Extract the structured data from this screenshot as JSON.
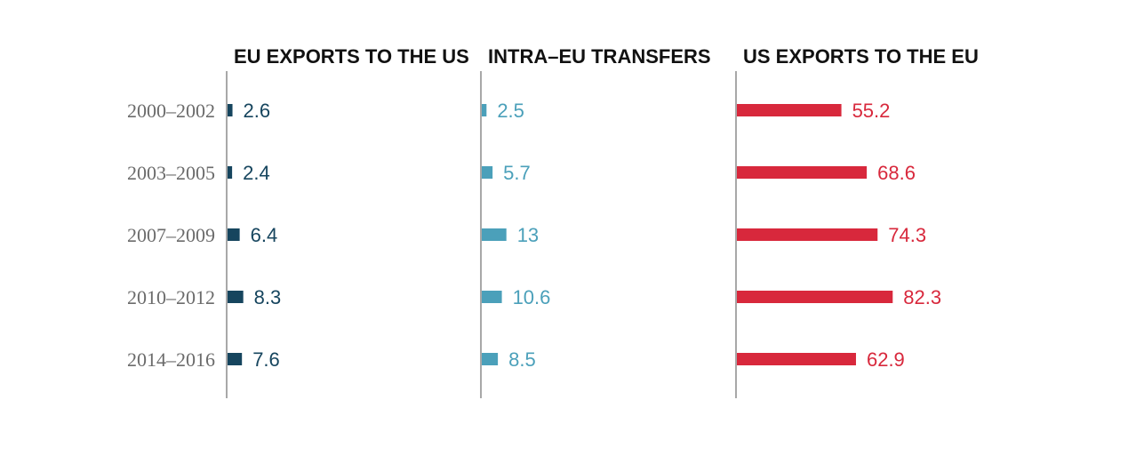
{
  "chart_data": {
    "type": "bar",
    "orientation": "horizontal",
    "grid": false,
    "categories": [
      "2000–2002",
      "2003–2005",
      "2007–2009",
      "2010–2012",
      "2014–2016"
    ],
    "panels": [
      {
        "title": "EU EXPORTS TO THE US",
        "color": "#16455e",
        "values": [
          2.6,
          2.4,
          6.4,
          8.3,
          7.6
        ],
        "labels": [
          "2.6",
          "2.4",
          "6.4",
          "8.3",
          "7.6"
        ]
      },
      {
        "title": "INTRA–EU TRANSFERS",
        "color": "#4ba0ba",
        "values": [
          2.5,
          5.7,
          13,
          10.6,
          8.5
        ],
        "labels": [
          "2.5",
          "5.7",
          "13",
          "10.6",
          "8.5"
        ]
      },
      {
        "title": "US EXPORTS TO THE EU",
        "color": "#d8283c",
        "values": [
          55.2,
          68.6,
          74.3,
          82.3,
          62.9
        ],
        "labels": [
          "55.2",
          "68.6",
          "74.3",
          "82.3",
          "62.9"
        ]
      }
    ]
  }
}
